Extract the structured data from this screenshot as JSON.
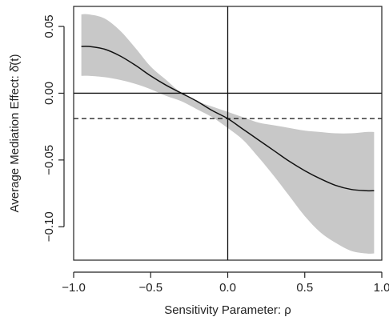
{
  "chart_data": {
    "type": "line",
    "title": "",
    "xlabel": "Sensitivity Parameter: ρ",
    "ylabel": "Average Mediation Effect: δ̄(t)",
    "xlim": [
      -1.0,
      1.0
    ],
    "ylim": [
      -0.125,
      0.065
    ],
    "x_ticks": [
      -1.0,
      -0.5,
      0.0,
      0.5,
      1.0
    ],
    "x_tick_labels": [
      "−1.0",
      "−0.5",
      "0.0",
      "0.5",
      "1.0"
    ],
    "y_ticks": [
      -0.1,
      -0.05,
      0.0,
      0.05
    ],
    "y_tick_labels": [
      "−0.10",
      "−0.05",
      "0.00",
      "0.05"
    ],
    "grid": false,
    "reference_lines": {
      "horizontal_solid_y": 0.0,
      "vertical_solid_x": 0.0,
      "horizontal_dashed_y": -0.019
    },
    "x": [
      -0.95,
      -0.9,
      -0.8,
      -0.7,
      -0.6,
      -0.5,
      -0.4,
      -0.3,
      -0.2,
      -0.1,
      0.0,
      0.1,
      0.2,
      0.3,
      0.4,
      0.5,
      0.6,
      0.7,
      0.8,
      0.9,
      0.95
    ],
    "series": [
      {
        "role": "estimate",
        "values": [
          0.035,
          0.035,
          0.033,
          0.028,
          0.021,
          0.013,
          0.006,
          0.0,
          -0.006,
          -0.013,
          -0.019,
          -0.027,
          -0.035,
          -0.043,
          -0.051,
          -0.058,
          -0.064,
          -0.069,
          -0.072,
          -0.073,
          -0.073
        ]
      },
      {
        "role": "ci_upper",
        "values": [
          0.059,
          0.059,
          0.056,
          0.047,
          0.034,
          0.02,
          0.01,
          0.0,
          -0.006,
          -0.01,
          -0.014,
          -0.018,
          -0.022,
          -0.024,
          -0.026,
          -0.028,
          -0.029,
          -0.03,
          -0.03,
          -0.029,
          -0.029
        ]
      },
      {
        "role": "ci_lower",
        "values": [
          0.013,
          0.013,
          0.012,
          0.01,
          0.007,
          0.003,
          -0.002,
          -0.006,
          -0.012,
          -0.018,
          -0.026,
          -0.035,
          -0.048,
          -0.062,
          -0.077,
          -0.092,
          -0.104,
          -0.112,
          -0.118,
          -0.12,
          -0.12
        ]
      }
    ]
  },
  "colors": {
    "band_fill": "#c8c8c8",
    "line": "#111111",
    "axis": "#222222"
  }
}
